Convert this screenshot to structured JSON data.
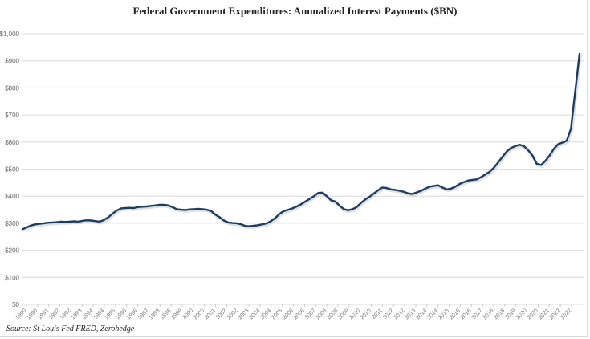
{
  "chart_data": {
    "type": "line",
    "title": "Federal Government Expenditures: Annualized Interest Payments ($BN)",
    "source": "Source: St Louis Fed FRED, Zerohedge",
    "xlabel": "",
    "ylabel": "",
    "ylim": [
      0,
      1000
    ],
    "grid": true,
    "legend": "none",
    "line_color": "#1f3c5e",
    "y_ticks": [
      "$0",
      "$100",
      "$200",
      "$300",
      "$400",
      "$500",
      "$600",
      "$700",
      "$800",
      "$900",
      "$1,000"
    ],
    "x_ticks": [
      "1990",
      "1990",
      "1991",
      "1992",
      "1992",
      "1993",
      "1994",
      "1994",
      "1995",
      "1996",
      "1996",
      "1997",
      "1998",
      "1998",
      "1999",
      "2000",
      "2000",
      "2001",
      "2002",
      "2002",
      "2003",
      "2004",
      "2004",
      "2005",
      "2006",
      "2006",
      "2007",
      "2008",
      "2008",
      "2009",
      "2010",
      "2010",
      "2011",
      "2012",
      "2012",
      "2013",
      "2014",
      "2014",
      "2015",
      "2016",
      "2016",
      "2017",
      "2018",
      "2018",
      "2019",
      "2020",
      "2020",
      "2021",
      "2022",
      "2022"
    ],
    "series": [
      {
        "frequency": "quarterly",
        "start": "1990-Q1",
        "end": "2022-Q3",
        "values": [
          278,
          285,
          292,
          296,
          298,
          300,
          302,
          303,
          304,
          306,
          305,
          306,
          307,
          306,
          309,
          311,
          310,
          308,
          306,
          312,
          322,
          335,
          347,
          355,
          356,
          357,
          356,
          360,
          361,
          362,
          364,
          366,
          368,
          368,
          366,
          360,
          352,
          350,
          349,
          351,
          352,
          353,
          352,
          350,
          345,
          332,
          322,
          310,
          303,
          301,
          300,
          296,
          290,
          289,
          291,
          293,
          296,
          300,
          308,
          320,
          335,
          345,
          350,
          355,
          362,
          370,
          380,
          390,
          400,
          412,
          413,
          400,
          385,
          380,
          365,
          352,
          348,
          352,
          360,
          375,
          388,
          398,
          410,
          422,
          432,
          430,
          425,
          423,
          420,
          416,
          410,
          408,
          414,
          420,
          428,
          435,
          438,
          440,
          432,
          425,
          428,
          435,
          445,
          452,
          458,
          460,
          462,
          470,
          480,
          490,
          505,
          525,
          545,
          565,
          578,
          585,
          590,
          585,
          570,
          550,
          520,
          515,
          530,
          550,
          575,
          592,
          598,
          605,
          650,
          790,
          926
        ]
      }
    ]
  }
}
